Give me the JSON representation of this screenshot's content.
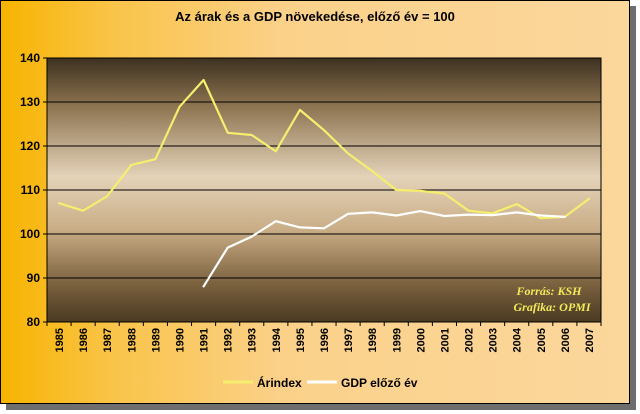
{
  "chart_data": {
    "type": "line",
    "title": "Az árak és a GDP növekedése, előző év = 100",
    "xlabel": "",
    "ylabel": "",
    "x": [
      "1985",
      "1986",
      "1987",
      "1988",
      "1989",
      "1990",
      "1991",
      "1992",
      "1993",
      "1994",
      "1995",
      "1996",
      "1997",
      "1998",
      "1999",
      "2000",
      "2001",
      "2002",
      "2003",
      "2004",
      "2005",
      "2006",
      "2007"
    ],
    "ylim": [
      80,
      140
    ],
    "yticks": [
      "80",
      "90",
      "100",
      "110",
      "120",
      "130",
      "140"
    ],
    "grid": true,
    "legend_position": "bottom",
    "series": [
      {
        "name": "Árindex",
        "color": "#f5ee6e",
        "values": [
          107.0,
          105.3,
          108.6,
          115.7,
          117.0,
          128.9,
          135.0,
          123.0,
          122.5,
          118.8,
          128.2,
          123.6,
          118.3,
          114.3,
          110.0,
          109.8,
          109.2,
          105.3,
          104.7,
          106.8,
          103.6,
          103.9,
          108.0
        ]
      },
      {
        "name": "GDP előző év",
        "color": "#ffffff",
        "values": [
          null,
          null,
          null,
          null,
          null,
          null,
          88.1,
          96.9,
          99.4,
          102.9,
          101.5,
          101.3,
          104.6,
          104.9,
          104.2,
          105.2,
          104.1,
          104.4,
          104.3,
          104.9,
          104.2,
          103.9,
          null
        ]
      }
    ],
    "annotations": [
      "Forrás: KSH",
      "Grafika: OPMI"
    ]
  },
  "colors": {
    "plot_top": "#3a2e1e",
    "plot_mid": "#e2d0b6",
    "grid": "#000000"
  }
}
